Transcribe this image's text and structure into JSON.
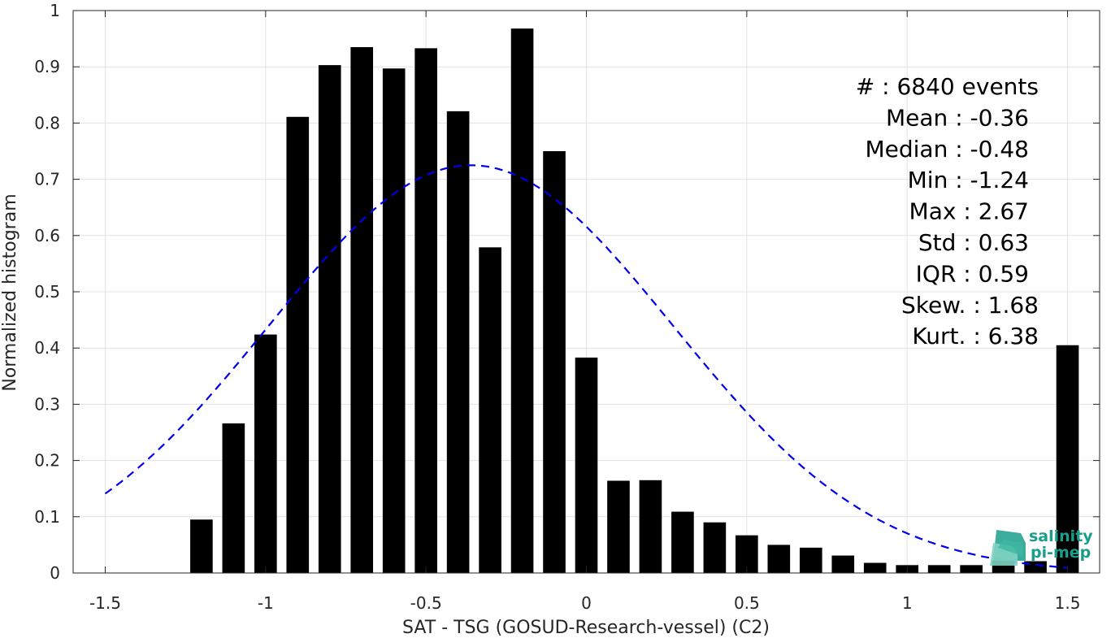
{
  "chart_data": {
    "type": "bar",
    "xlabel": "SAT - TSG (GOSUD-Research-vessel) (C2)",
    "ylabel": "Normalized histogram",
    "xlim": [
      -1.6,
      1.6
    ],
    "ylim": [
      0,
      1
    ],
    "xticks": [
      "-1.5",
      "-1",
      "-0.5",
      "0",
      "0.5",
      "1",
      "1.5"
    ],
    "xtick_values": [
      -1.5,
      -1,
      -0.5,
      0,
      0.5,
      1,
      1.5
    ],
    "yticks": [
      "0",
      "0.1",
      "0.2",
      "0.3",
      "0.4",
      "0.5",
      "0.6",
      "0.7",
      "0.8",
      "0.9",
      "1"
    ],
    "ytick_values": [
      0,
      0.1,
      0.2,
      0.3,
      0.4,
      0.5,
      0.6,
      0.7,
      0.8,
      0.9,
      1
    ],
    "grid": true,
    "bar_color": "#000000",
    "bins": [
      {
        "x": -1.5,
        "value": 0.0
      },
      {
        "x": -1.4,
        "value": 0.0
      },
      {
        "x": -1.3,
        "value": 0.0
      },
      {
        "x": -1.2,
        "value": 0.095
      },
      {
        "x": -1.1,
        "value": 0.266
      },
      {
        "x": -1.0,
        "value": 0.424
      },
      {
        "x": -0.9,
        "value": 0.811
      },
      {
        "x": -0.8,
        "value": 0.903
      },
      {
        "x": -0.7,
        "value": 0.935
      },
      {
        "x": -0.6,
        "value": 0.897
      },
      {
        "x": -0.5,
        "value": 0.933
      },
      {
        "x": -0.4,
        "value": 0.821
      },
      {
        "x": -0.3,
        "value": 0.579
      },
      {
        "x": -0.2,
        "value": 0.968
      },
      {
        "x": -0.1,
        "value": 0.75
      },
      {
        "x": 0.0,
        "value": 0.383
      },
      {
        "x": 0.1,
        "value": 0.164
      },
      {
        "x": 0.2,
        "value": 0.165
      },
      {
        "x": 0.3,
        "value": 0.109
      },
      {
        "x": 0.4,
        "value": 0.09
      },
      {
        "x": 0.5,
        "value": 0.067
      },
      {
        "x": 0.6,
        "value": 0.05
      },
      {
        "x": 0.7,
        "value": 0.045
      },
      {
        "x": 0.8,
        "value": 0.031
      },
      {
        "x": 0.9,
        "value": 0.018
      },
      {
        "x": 1.0,
        "value": 0.014
      },
      {
        "x": 1.1,
        "value": 0.014
      },
      {
        "x": 1.2,
        "value": 0.014
      },
      {
        "x": 1.3,
        "value": 0.022
      },
      {
        "x": 1.4,
        "value": 0.021
      },
      {
        "x": 1.5,
        "value": 0.405
      }
    ],
    "fit_curve": {
      "style": "dashed",
      "color": "#0000ee",
      "mean": -0.36,
      "std": 0.63,
      "peak": 0.725,
      "x_range": [
        -1.5,
        1.5
      ]
    },
    "stats_lines": [
      "#  : 6840 events",
      "Mean : -0.36",
      "Median : -0.48",
      "Min : -1.24",
      "Max : 2.67",
      "Std : 0.63",
      "IQR : 0.59",
      "Skew. : 1.68",
      "Kurt. : 6.38"
    ]
  },
  "logo": {
    "line1": "salinity",
    "line2": "pi-mep",
    "color": "#1a9e8c"
  }
}
